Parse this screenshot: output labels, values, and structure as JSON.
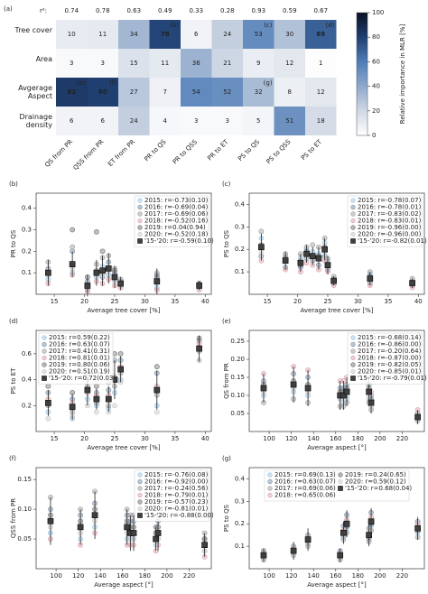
{
  "chart_data": [
    {
      "type": "heatmap",
      "label": "(a)",
      "r2_label": "r²:",
      "r2": [
        0.74,
        0.78,
        0.63,
        0.49,
        0.33,
        0.28,
        0.93,
        0.59,
        0.67
      ],
      "rows": [
        "Tree cover",
        "Area",
        "Avgerage Aspect",
        "Drainage density"
      ],
      "columns": [
        "QS from PR",
        "QSS from PR",
        "ET from PR",
        "PR to QS",
        "PR to QSS",
        "PR to ET",
        "PS to QS",
        "PS to QSS",
        "PS to ET"
      ],
      "values": [
        [
          10,
          11,
          34,
          78,
          6,
          24,
          53,
          30,
          69
        ],
        [
          3,
          3,
          15,
          11,
          36,
          21,
          9,
          12,
          1
        ],
        [
          82,
          80,
          27,
          7,
          54,
          52,
          32,
          8,
          12
        ],
        [
          6,
          6,
          24,
          4,
          3,
          3,
          5,
          51,
          18
        ]
      ],
      "annotations": [
        {
          "row": 0,
          "col": 3,
          "text": "(b)"
        },
        {
          "row": 0,
          "col": 6,
          "text": "(c)"
        },
        {
          "row": 0,
          "col": 8,
          "text": "(d)"
        },
        {
          "row": 2,
          "col": 0,
          "text": "(e)"
        },
        {
          "row": 2,
          "col": 1,
          "text": "(f)"
        },
        {
          "row": 2,
          "col": 6,
          "text": "(g)"
        }
      ],
      "colorbar_label": "Relative importance in MLR [%]",
      "clim": [
        0,
        100
      ],
      "cticks": [
        0,
        20,
        40,
        60,
        80,
        100
      ]
    },
    {
      "type": "scatter",
      "label": "(b)",
      "xlabel": "Average tree cover [%]",
      "ylabel": "PR to QS",
      "legend": "upper right",
      "xlim": [
        12,
        41
      ],
      "xticks": [
        15,
        20,
        25,
        30,
        35,
        40
      ],
      "ylim": [
        0,
        0.47
      ],
      "yticks": [
        0.1,
        0.2,
        0.3,
        0.4
      ],
      "x": [
        14,
        18,
        20.5,
        22,
        23,
        24,
        25,
        26,
        32,
        39
      ],
      "series": [
        {
          "name": "2015: r=-0.73(0.10)",
          "color": "#9cc3e0",
          "values": [
            0.07,
            0.1,
            0.03,
            0.08,
            0.13,
            0.09,
            0.07,
            0.04,
            0.03,
            0.03
          ]
        },
        {
          "name": "2016: r=-0.69(0.04)",
          "color": "#7a8fa6",
          "values": [
            0.12,
            0.2,
            0.06,
            0.11,
            0.08,
            0.15,
            0.1,
            0.06,
            0.09,
            0.05
          ]
        },
        {
          "name": "2017: r=-0.69(0.06)",
          "color": "#9e9e9e",
          "values": [
            0.15,
            0.22,
            0.02,
            0.14,
            0.17,
            0.18,
            0.12,
            0.07,
            0.1,
            0.04
          ]
        },
        {
          "name": "2018: r=-0.52(0.16)",
          "color": "#d9a0a8",
          "values": [
            0.05,
            0.09,
            0.01,
            0.06,
            0.05,
            0.07,
            0.04,
            0.03,
            0.02,
            0.02
          ]
        },
        {
          "name": "2019: r=0.04(0.94)",
          "color": "#707070",
          "values": [
            0.1,
            0.3,
            0.08,
            0.29,
            0.2,
            0.12,
            0.11,
            0.05,
            0.08,
            0.05
          ]
        },
        {
          "name": "2020: r=-0.52(0.18)",
          "color": "#c8c8c8",
          "values": [
            0.09,
            0.12,
            0.04,
            0.1,
            0.09,
            0.11,
            0.06,
            0.04,
            0.05,
            0.03
          ]
        },
        {
          "name": "'15-'20: r=-0.59(0.10)",
          "color": "#404040",
          "marker": "square",
          "values": [
            0.1,
            0.14,
            0.04,
            0.1,
            0.11,
            0.12,
            0.08,
            0.05,
            0.06,
            0.04
          ],
          "errors": [
            0.06,
            0.06,
            0.05,
            0.06,
            0.07,
            0.07,
            0.05,
            0.03,
            0.06,
            0.02
          ]
        }
      ]
    },
    {
      "type": "scatter",
      "label": "(c)",
      "xlabel": "Average tree cover [%]",
      "ylabel": "PS to QS",
      "legend": "upper right",
      "xlim": [
        12,
        41
      ],
      "xticks": [
        15,
        20,
        25,
        30,
        35,
        40
      ],
      "ylim": [
        0,
        0.45
      ],
      "yticks": [
        0.1,
        0.2,
        0.3,
        0.4
      ],
      "x": [
        14,
        18,
        20.5,
        21.5,
        22.5,
        23.5,
        24.5,
        25,
        26,
        32,
        39
      ],
      "series": [
        {
          "name": "2015: r=-0.78(0.07)",
          "color": "#9cc3e0",
          "values": [
            0.25,
            0.17,
            0.16,
            0.2,
            0.19,
            0.18,
            0.23,
            0.15,
            0.07,
            0.09,
            0.06
          ]
        },
        {
          "name": "2016: r=-0.78(0.01)",
          "color": "#7a8fa6",
          "values": [
            0.17,
            0.12,
            0.12,
            0.16,
            0.15,
            0.13,
            0.17,
            0.11,
            0.05,
            0.05,
            0.04
          ]
        },
        {
          "name": "2017: r=-0.83(0.02)",
          "color": "#9e9e9e",
          "values": [
            0.28,
            0.18,
            0.18,
            0.21,
            0.22,
            0.21,
            0.25,
            0.16,
            0.08,
            0.1,
            0.07
          ]
        },
        {
          "name": "2018: r=-0.83(0.01)",
          "color": "#d9a0a8",
          "values": [
            0.15,
            0.11,
            0.1,
            0.14,
            0.13,
            0.11,
            0.15,
            0.1,
            0.04,
            0.04,
            0.03
          ]
        },
        {
          "name": "2019: r=-0.96(0.00)",
          "color": "#707070",
          "values": [
            0.22,
            0.16,
            0.13,
            0.19,
            0.17,
            0.17,
            0.21,
            0.13,
            0.06,
            0.08,
            0.05
          ]
        },
        {
          "name": "2020: r=-0.96(0.00)",
          "color": "#c8c8c8",
          "values": [
            0.19,
            0.15,
            0.15,
            0.18,
            0.16,
            0.16,
            0.19,
            0.13,
            0.06,
            0.07,
            0.05
          ]
        },
        {
          "name": "'15-'20: r=-0.82(0.01)",
          "color": "#404040",
          "marker": "square",
          "values": [
            0.21,
            0.15,
            0.14,
            0.18,
            0.17,
            0.16,
            0.2,
            0.13,
            0.06,
            0.07,
            0.05
          ],
          "errors": [
            0.06,
            0.04,
            0.04,
            0.04,
            0.04,
            0.05,
            0.05,
            0.04,
            0.02,
            0.03,
            0.02
          ]
        }
      ]
    },
    {
      "type": "scatter",
      "label": "(d)",
      "xlabel": "Average tree cover [%]",
      "ylabel": "PS to ET",
      "legend": "upper left",
      "xlim": [
        12,
        41
      ],
      "xticks": [
        15,
        20,
        25,
        30,
        35,
        40
      ],
      "ylim": [
        0,
        0.78
      ],
      "yticks": [
        0.2,
        0.4,
        0.6
      ],
      "x": [
        14,
        18,
        20.5,
        22,
        24,
        25,
        26,
        32,
        39
      ],
      "series": [
        {
          "name": "2015: r=0.59(0.22)",
          "color": "#9cc3e0",
          "values": [
            0.15,
            0.1,
            0.25,
            0.2,
            0.18,
            0.3,
            0.4,
            0.2,
            0.55
          ]
        },
        {
          "name": "2016: r=0.63(0.07)",
          "color": "#7a8fa6",
          "values": [
            0.3,
            0.25,
            0.4,
            0.3,
            0.32,
            0.55,
            0.55,
            0.45,
            0.7
          ]
        },
        {
          "name": "2017: r=0.41(0.31)",
          "color": "#9e9e9e",
          "values": [
            0.2,
            0.15,
            0.35,
            0.22,
            0.2,
            0.35,
            0.45,
            0.28,
            0.62
          ]
        },
        {
          "name": "2018: r=0.81(0.01)",
          "color": "#d9a0a8",
          "values": [
            0.25,
            0.22,
            0.3,
            0.28,
            0.28,
            0.42,
            0.5,
            0.35,
            0.68
          ]
        },
        {
          "name": "2019: r=0.80(0.06)",
          "color": "#707070",
          "values": [
            0.35,
            0.3,
            0.45,
            0.35,
            0.38,
            0.6,
            0.6,
            0.5,
            0.72
          ]
        },
        {
          "name": "2020: r=0.51(0.19)",
          "color": "#c8c8c8",
          "values": [
            0.1,
            0.12,
            0.2,
            0.15,
            0.15,
            0.2,
            0.38,
            0.15,
            0.55
          ]
        },
        {
          "name": "'15-'20: r=0.72(0.03)",
          "color": "#404040",
          "marker": "square",
          "values": [
            0.22,
            0.19,
            0.32,
            0.25,
            0.25,
            0.4,
            0.48,
            0.32,
            0.64
          ],
          "errors": [
            0.1,
            0.1,
            0.12,
            0.08,
            0.1,
            0.15,
            0.1,
            0.15,
            0.1
          ]
        }
      ]
    },
    {
      "type": "scatter",
      "label": "(e)",
      "xlabel": "Average aspect [°]",
      "ylabel": "QS from PR",
      "legend": "upper right",
      "xlim": [
        82,
        240
      ],
      "xticks": [
        100,
        120,
        140,
        160,
        180,
        200,
        220
      ],
      "ylim": [
        0,
        0.28
      ],
      "yticks": [
        0.05,
        {
          "value": 0.1,
          "label": "0.10"
        },
        0.15,
        {
          "value": 0.2,
          "label": "0.20"
        },
        0.25
      ],
      "x": [
        95,
        122,
        135,
        164,
        167,
        170,
        190,
        192,
        234
      ],
      "series": [
        {
          "name": "2015: r=-0.68(0.14)",
          "color": "#9cc3e0",
          "values": [
            0.1,
            0.11,
            0.1,
            0.09,
            0.08,
            0.09,
            0.09,
            0.07,
            0.03
          ]
        },
        {
          "name": "2016: r=-0.86(0.00)",
          "color": "#7a8fa6",
          "values": [
            0.14,
            0.16,
            0.15,
            0.12,
            0.12,
            0.13,
            0.13,
            0.1,
            0.05
          ]
        },
        {
          "name": "2017: r=-0.20(0.64)",
          "color": "#9e9e9e",
          "values": [
            0.08,
            0.09,
            0.08,
            0.07,
            0.07,
            0.08,
            0.08,
            0.06,
            0.03
          ]
        },
        {
          "name": "2018: r=-0.87(0.00)",
          "color": "#d9a0a8",
          "values": [
            0.16,
            0.18,
            0.17,
            0.14,
            0.14,
            0.15,
            0.15,
            0.11,
            0.06
          ]
        },
        {
          "name": "2019: r=-0.82(0.05)",
          "color": "#707070",
          "values": [
            0.13,
            0.14,
            0.13,
            0.11,
            0.11,
            0.12,
            0.12,
            0.09,
            0.04
          ]
        },
        {
          "name": "2020: r=-0.85(0.01)",
          "color": "#c8c8c8",
          "values": [
            0.11,
            0.12,
            0.11,
            0.09,
            0.09,
            0.1,
            0.1,
            0.07,
            0.03
          ]
        },
        {
          "name": "'15-'20: r=-0.79(0.01)",
          "color": "#404040",
          "marker": "square",
          "values": [
            0.12,
            0.13,
            0.12,
            0.1,
            0.1,
            0.11,
            0.11,
            0.08,
            0.04
          ],
          "errors": [
            0.04,
            0.05,
            0.05,
            0.04,
            0.04,
            0.04,
            0.04,
            0.03,
            0.02
          ]
        }
      ]
    },
    {
      "type": "scatter",
      "label": "(f)",
      "xlabel": "Average aspect [°]",
      "ylabel": "QSS from PR",
      "legend": "upper right",
      "xlim": [
        82,
        240
      ],
      "xticks": [
        100,
        120,
        140,
        160,
        180,
        200,
        220
      ],
      "ylim": [
        0,
        0.17
      ],
      "yticks": [
        0.05,
        {
          "value": 0.1,
          "label": "0.10"
        },
        0.15
      ],
      "x": [
        95,
        122,
        135,
        164,
        167,
        170,
        190,
        192,
        234
      ],
      "series": [
        {
          "name": "2015: r=-0.76(0.08)",
          "color": "#9cc3e0",
          "values": [
            0.06,
            0.05,
            0.07,
            0.05,
            0.05,
            0.05,
            0.04,
            0.05,
            0.03
          ]
        },
        {
          "name": "2016: r=-0.92(0.00)",
          "color": "#7a8fa6",
          "values": [
            0.1,
            0.09,
            0.11,
            0.09,
            0.08,
            0.08,
            0.07,
            0.08,
            0.05
          ]
        },
        {
          "name": "2017: r=-0.24(0.56)",
          "color": "#9e9e9e",
          "values": [
            0.12,
            0.1,
            0.13,
            0.1,
            0.09,
            0.09,
            0.07,
            0.09,
            0.06
          ]
        },
        {
          "name": "2018: r=-0.79(0.01)",
          "color": "#d9a0a8",
          "values": [
            0.05,
            0.04,
            0.06,
            0.04,
            0.04,
            0.04,
            0.03,
            0.04,
            0.02
          ]
        },
        {
          "name": "2019: r=-0.57(0.23)",
          "color": "#707070",
          "values": [
            0.09,
            0.08,
            0.1,
            0.08,
            0.07,
            0.07,
            0.06,
            0.07,
            0.05
          ]
        },
        {
          "name": "2020: r=-0.81(0.01)",
          "color": "#c8c8c8",
          "values": [
            0.07,
            0.06,
            0.08,
            0.06,
            0.05,
            0.05,
            0.05,
            0.05,
            0.03
          ]
        },
        {
          "name": "'15-'20: r=-0.88(0.00)",
          "color": "#404040",
          "marker": "square",
          "values": [
            0.08,
            0.07,
            0.09,
            0.07,
            0.06,
            0.06,
            0.05,
            0.06,
            0.04
          ],
          "errors": [
            0.04,
            0.03,
            0.04,
            0.03,
            0.03,
            0.03,
            0.02,
            0.03,
            0.02
          ]
        }
      ]
    },
    {
      "type": "scatter",
      "label": "(g)",
      "xlabel": "Average aspect [°]",
      "ylabel": "PS to QS",
      "legend": "upper center",
      "legend_columns": 2,
      "xlim": [
        82,
        240
      ],
      "xticks": [
        100,
        120,
        140,
        160,
        180,
        200,
        220
      ],
      "ylim": [
        0,
        0.45
      ],
      "yticks": [
        0.1,
        0.2,
        0.3,
        0.4
      ],
      "x": [
        95,
        122,
        135,
        164,
        167,
        170,
        190,
        192,
        234
      ],
      "series": [
        {
          "name": "2015: r=0.69(0.13)",
          "color": "#9cc3e0",
          "values": [
            0.05,
            0.07,
            0.11,
            0.05,
            0.14,
            0.18,
            0.13,
            0.19,
            0.16
          ]
        },
        {
          "name": "2016: r=0.63(0.07)",
          "color": "#7a8fa6",
          "values": [
            0.08,
            0.1,
            0.15,
            0.08,
            0.19,
            0.24,
            0.18,
            0.25,
            0.21
          ]
        },
        {
          "name": "2017: r=0.69(0.06)",
          "color": "#9e9e9e",
          "values": [
            0.04,
            0.06,
            0.1,
            0.04,
            0.13,
            0.16,
            0.12,
            0.17,
            0.14
          ]
        },
        {
          "name": "2018: r=0.65(0.06)",
          "color": "#d9a0a8",
          "values": [
            0.07,
            0.09,
            0.14,
            0.07,
            0.17,
            0.22,
            0.16,
            0.23,
            0.2
          ]
        },
        {
          "name": "2019: r=0.24(0.65)",
          "color": "#707070",
          "values": [
            0.06,
            0.08,
            0.12,
            0.06,
            0.15,
            0.19,
            0.14,
            0.2,
            0.17
          ]
        },
        {
          "name": "2020: r=0.59(0.12)",
          "color": "#c8c8c8",
          "values": [
            0.05,
            0.07,
            0.12,
            0.05,
            0.15,
            0.2,
            0.15,
            0.21,
            0.18
          ]
        },
        {
          "name": "'15-'20: r=0.68(0.04)",
          "color": "#404040",
          "marker": "square",
          "values": [
            0.06,
            0.08,
            0.13,
            0.06,
            0.16,
            0.2,
            0.15,
            0.21,
            0.18
          ],
          "errors": [
            0.03,
            0.04,
            0.05,
            0.03,
            0.05,
            0.06,
            0.05,
            0.06,
            0.05
          ]
        }
      ]
    }
  ]
}
